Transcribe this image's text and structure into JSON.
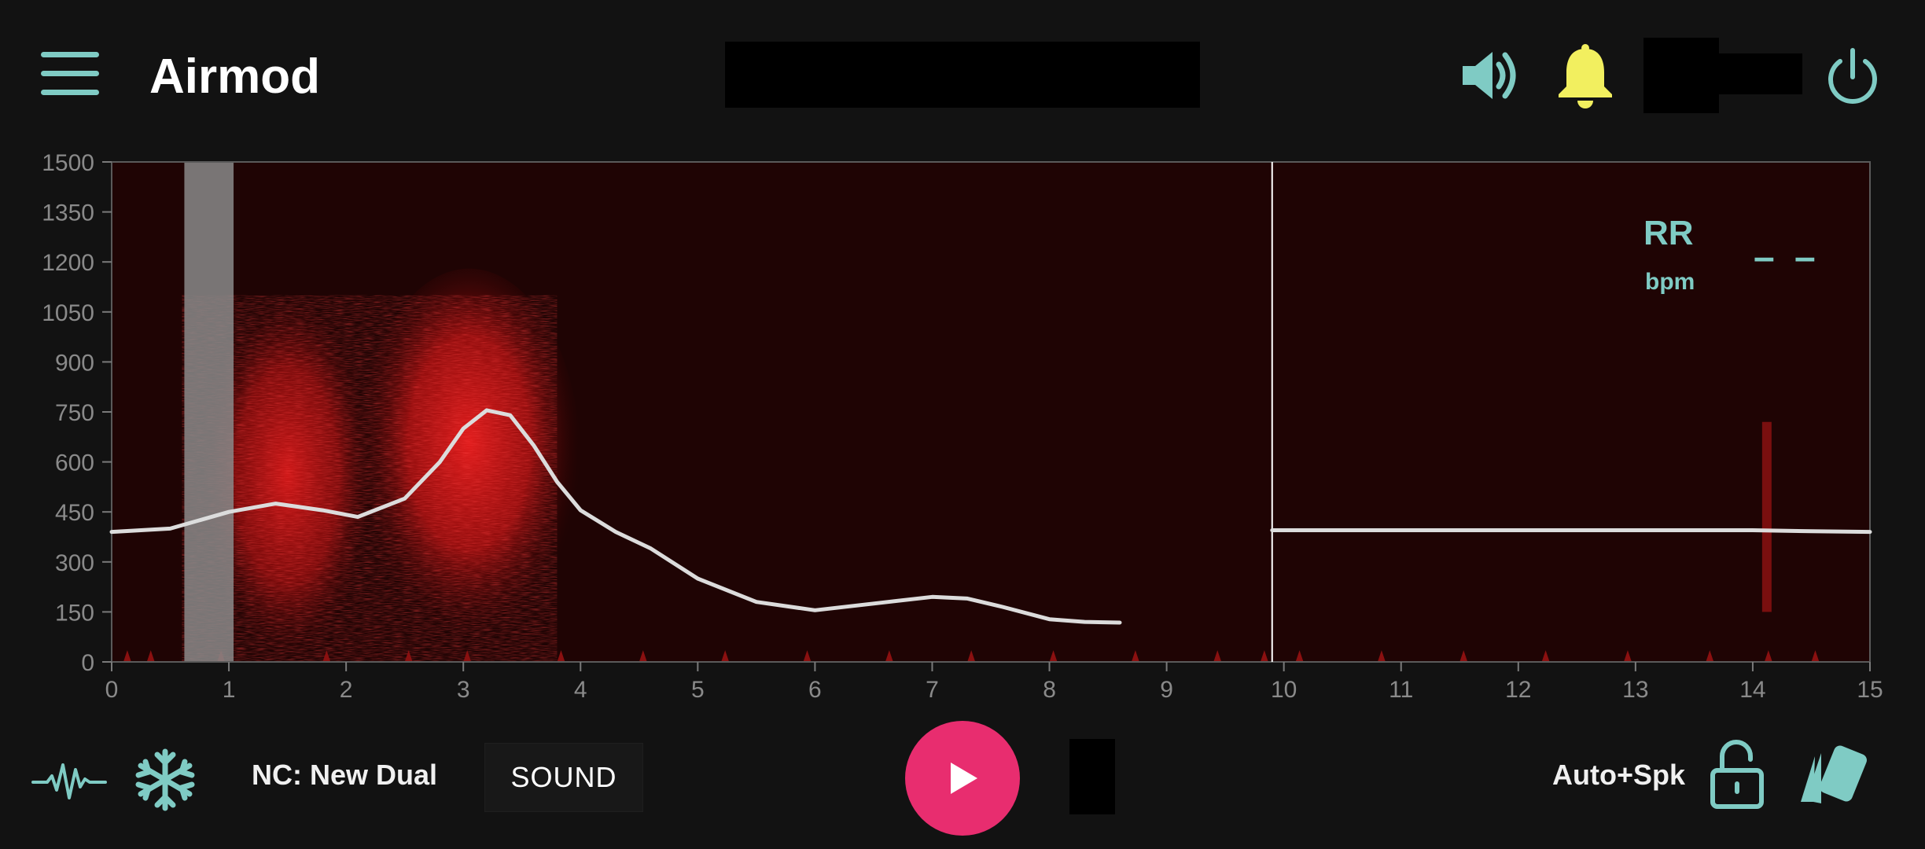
{
  "header": {
    "title": "Airmod",
    "icons": [
      "menu-icon",
      "speaker-icon",
      "bell-icon",
      "power-icon"
    ]
  },
  "colors": {
    "background": "#121212",
    "accent": "#7fcbc4",
    "bell": "#f2ef5f",
    "play": "#e82d6f",
    "spectrogram": "#c81414",
    "trace": "#dcdcdc"
  },
  "readout": {
    "label": "RR",
    "unit": "bpm",
    "value": "– –"
  },
  "footer": {
    "nc_label": "NC: New Dual",
    "sound_label": "SOUND",
    "mode_label": "Auto+Spk"
  },
  "chart_data": {
    "type": "line",
    "background": "spectrogram",
    "xlim": [
      0,
      15
    ],
    "ylim": [
      0,
      1500
    ],
    "x_ticks": [
      0,
      1,
      2,
      3,
      4,
      5,
      6,
      7,
      8,
      9,
      10,
      11,
      12,
      13,
      14,
      15
    ],
    "y_ticks": [
      0,
      150,
      300,
      450,
      600,
      750,
      900,
      1050,
      1200,
      1350,
      1500
    ],
    "cursor_x": 9.9,
    "highlight_band": [
      0.62,
      1.04
    ],
    "series": [
      {
        "x": [
          0,
          0.5,
          1.0,
          1.4,
          1.8,
          2.1,
          2.5,
          2.8,
          3.0,
          3.2,
          3.4,
          3.6,
          3.8,
          4.0,
          4.3,
          4.6,
          5.0,
          5.5,
          6.0,
          6.5,
          7.0,
          7.3,
          7.6,
          8.0,
          8.3,
          8.6
        ],
        "y": [
          390,
          400,
          450,
          475,
          455,
          435,
          490,
          600,
          700,
          755,
          740,
          650,
          540,
          455,
          390,
          340,
          250,
          180,
          155,
          175,
          195,
          190,
          165,
          128,
          120,
          118
        ]
      },
      {
        "x": [
          9.9,
          11,
          12,
          13,
          14,
          14.5,
          15
        ],
        "y": [
          395,
          395,
          395,
          395,
          395,
          392,
          390
        ]
      }
    ]
  }
}
